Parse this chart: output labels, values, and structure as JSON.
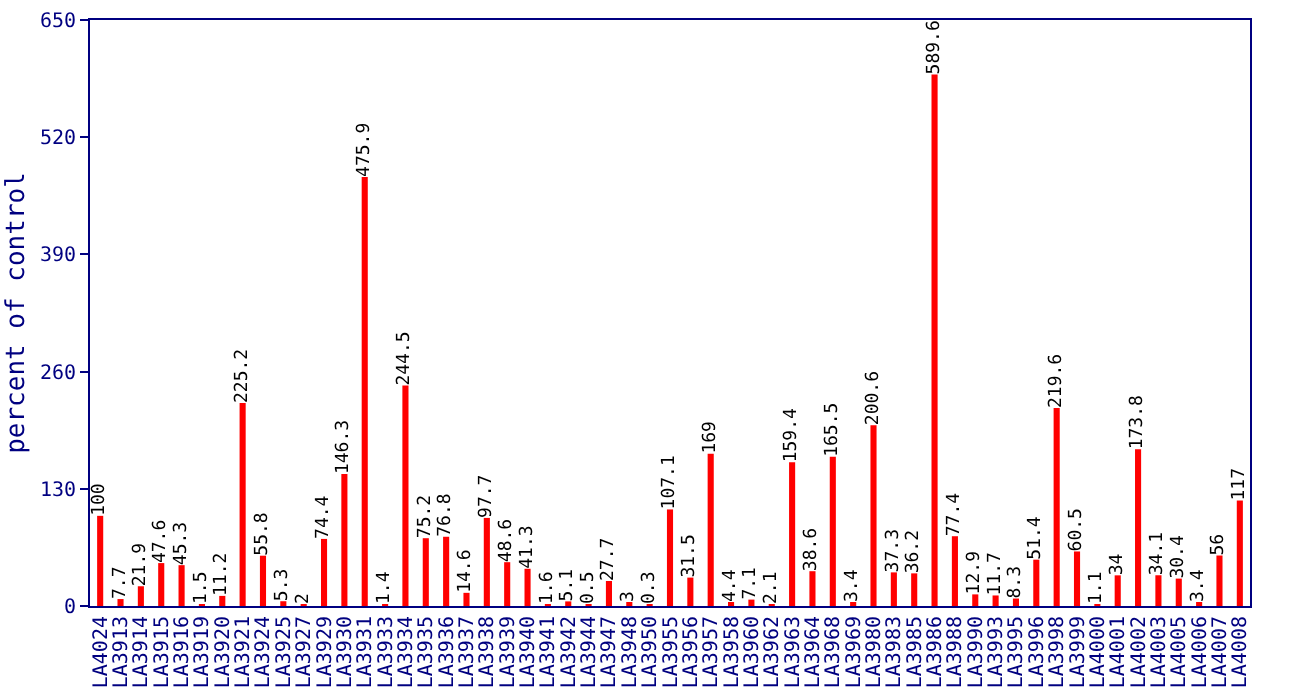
{
  "chart_data": {
    "type": "bar",
    "ylabel": "percent of control",
    "categories": [
      "LA4024",
      "LA3913",
      "LA3914",
      "LA3915",
      "LA3916",
      "LA3919",
      "LA3920",
      "LA3921",
      "LA3924",
      "LA3925",
      "LA3927",
      "LA3929",
      "LA3930",
      "LA3931",
      "LA3933",
      "LA3934",
      "LA3935",
      "LA3936",
      "LA3937",
      "LA3938",
      "LA3939",
      "LA3940",
      "LA3941",
      "LA3942",
      "LA3944",
      "LA3947",
      "LA3948",
      "LA3950",
      "LA3955",
      "LA3956",
      "LA3957",
      "LA3958",
      "LA3960",
      "LA3962",
      "LA3963",
      "LA3964",
      "LA3968",
      "LA3969",
      "LA3980",
      "LA3983",
      "LA3985",
      "LA3986",
      "LA3988",
      "LA3990",
      "LA3993",
      "LA3995",
      "LA3996",
      "LA3998",
      "LA3999",
      "LA4000",
      "LA4001",
      "LA4002",
      "LA4003",
      "LA4005",
      "LA4006",
      "LA4007",
      "LA4008"
    ],
    "values": [
      100,
      7.7,
      21.9,
      47.6,
      45.3,
      1.5,
      11.2,
      225.2,
      55.8,
      5.3,
      2,
      74.4,
      146.3,
      475.9,
      1.4,
      244.5,
      75.2,
      76.8,
      14.6,
      97.7,
      48.6,
      41.3,
      1.6,
      5.1,
      0.5,
      27.7,
      3,
      0.3,
      107.1,
      31.5,
      169,
      4.4,
      7.1,
      2.1,
      159.4,
      38.6,
      165.5,
      3.4,
      200.6,
      37.3,
      36.2,
      589.6,
      77.4,
      12.9,
      11.7,
      8.3,
      51.4,
      219.6,
      60.5,
      1.1,
      34,
      173.8,
      34.1,
      30.4,
      3.4,
      56,
      117
    ],
    "color": "#ff0000",
    "ylim": [
      0,
      650
    ],
    "yticks": [
      0,
      130,
      260,
      390,
      520,
      650
    ],
    "grid": false,
    "data_labels": true
  }
}
